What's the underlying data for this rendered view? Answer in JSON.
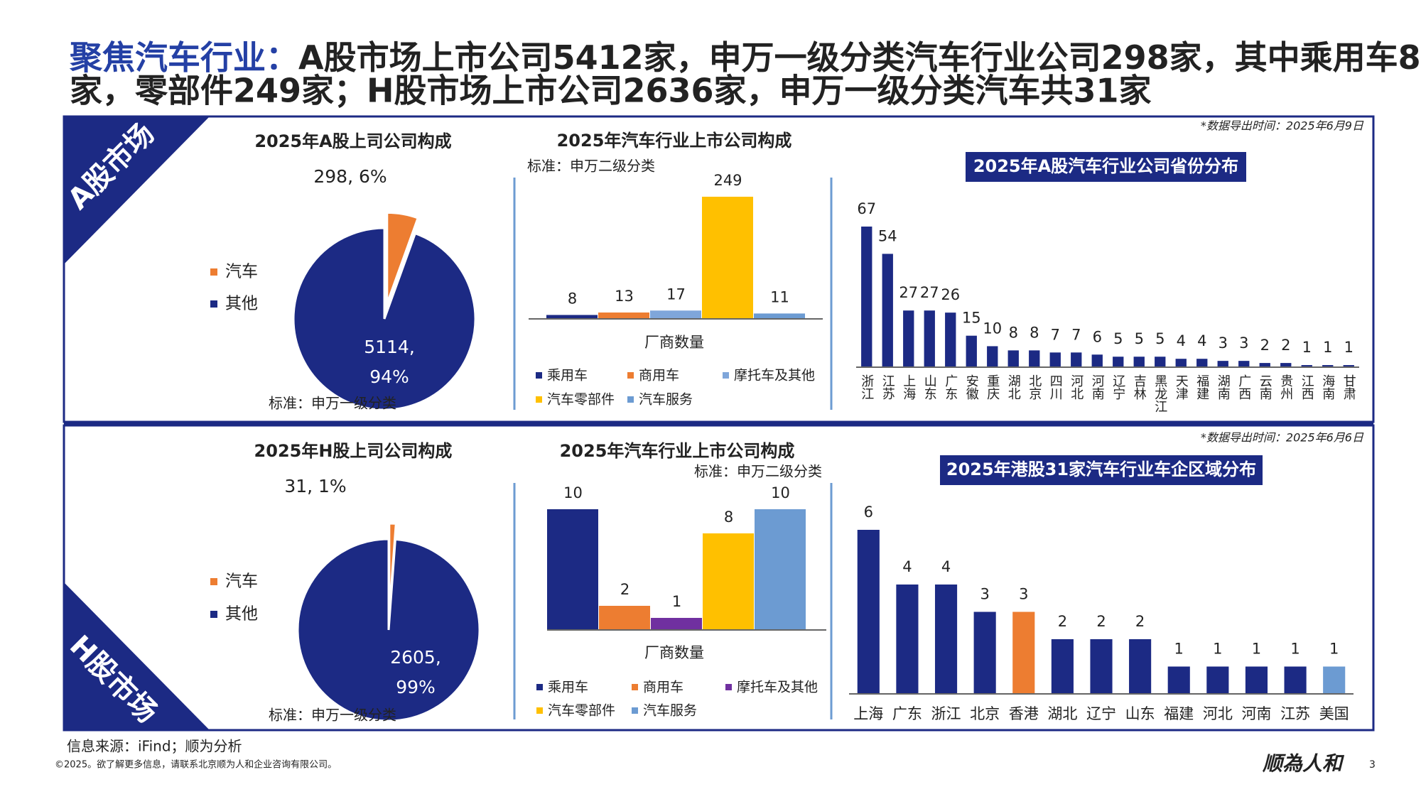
{
  "header": {
    "title_prefix": "聚焦汽车行业：",
    "title_line1": "A股市场上市公司5412家，申万一级分类汽车行业公司298家，其中乘用车8",
    "title_line2": "家，零部件249家；H股市场上市公司2636家，申万一级分类汽车共31家"
  },
  "sections": [
    {
      "label": "A股市场"
    },
    {
      "label": "H股市场"
    }
  ],
  "chart_data": [
    {
      "type": "pie",
      "title": "2025年A股上司公司构成",
      "categories": [
        "汽车",
        "其他"
      ],
      "values": [
        298,
        5114
      ],
      "value_labels": [
        "298, 6%",
        "5114, 94%"
      ],
      "colors": [
        "#ED7D31",
        "#1C2A84"
      ],
      "note": "标准：申万一级分类"
    },
    {
      "type": "cluster",
      "title": "2025年汽车行业上市公司构成",
      "note": "标准：申万二级分类",
      "categories": [
        "厂商数量"
      ],
      "series": [
        {
          "name": "乘用车",
          "color": "#1C2A84",
          "values": [
            8
          ]
        },
        {
          "name": "商用车",
          "color": "#ED7D31",
          "values": [
            13
          ]
        },
        {
          "name": "摩托车及其他",
          "color": "#7FA6DA",
          "values": [
            17
          ]
        },
        {
          "name": "汽车零部件",
          "color": "#FFC000",
          "values": [
            249
          ]
        },
        {
          "name": "汽车服务",
          "color": "#6C9BD2",
          "values": [
            11
          ]
        }
      ]
    },
    {
      "type": "bar",
      "title": "2025年A股汽车行业公司省份分布",
      "note": "*数据导出时间：2025年6月9日",
      "label_orientation": "vertical",
      "categories": [
        "浙江",
        "江苏",
        "上海",
        "山东",
        "广东",
        "安徽",
        "重庆",
        "湖北",
        "北京",
        "四川",
        "河北",
        "河南",
        "辽宁",
        "吉林",
        "黑龙江",
        "天津",
        "福建",
        "湖南",
        "广西",
        "云南",
        "贵州",
        "江西",
        "海南",
        "甘肃"
      ],
      "values": [
        67,
        54,
        27,
        27,
        26,
        15,
        10,
        8,
        8,
        7,
        7,
        6,
        5,
        5,
        5,
        4,
        4,
        3,
        3,
        2,
        2,
        1,
        1,
        1
      ],
      "color": "#1C2A84"
    },
    {
      "type": "pie",
      "title": "2025年H股上司公司构成",
      "categories": [
        "汽车",
        "其他"
      ],
      "values": [
        31,
        2605
      ],
      "value_labels": [
        "31, 1%",
        "2605, 99%"
      ],
      "colors": [
        "#ED7D31",
        "#1C2A84"
      ],
      "note": "标准：申万一级分类"
    },
    {
      "type": "cluster",
      "title": "2025年汽车行业上市公司构成",
      "note": "标准：申万二级分类",
      "categories": [
        "厂商数量"
      ],
      "series": [
        {
          "name": "乘用车",
          "color": "#1C2A84",
          "values": [
            10
          ]
        },
        {
          "name": "商用车",
          "color": "#ED7D31",
          "values": [
            2
          ]
        },
        {
          "name": "摩托车及其他",
          "color": "#7030A0",
          "values": [
            1
          ]
        },
        {
          "name": "汽车零部件",
          "color": "#FFC000",
          "values": [
            8
          ]
        },
        {
          "name": "汽车服务",
          "color": "#6C9BD2",
          "values": [
            10
          ]
        }
      ]
    },
    {
      "type": "bar",
      "title": "2025年港股31家汽车行业车企区域分布",
      "note": "*数据导出时间：2025年6月6日",
      "label_orientation": "horizontal",
      "categories": [
        "上海",
        "广东",
        "浙江",
        "北京",
        "香港",
        "湖北",
        "辽宁",
        "山东",
        "福建",
        "河北",
        "河南",
        "江苏",
        "美国"
      ],
      "values": [
        6,
        4,
        4,
        3,
        3,
        2,
        2,
        2,
        1,
        1,
        1,
        1,
        1
      ],
      "colors": [
        "#1C2A84",
        "#1C2A84",
        "#1C2A84",
        "#1C2A84",
        "#ED7D31",
        "#1C2A84",
        "#1C2A84",
        "#1C2A84",
        "#1C2A84",
        "#1C2A84",
        "#1C2A84",
        "#1C2A84",
        "#6C9BD2"
      ]
    }
  ],
  "footer": {
    "source": "信息来源：iFind；顺为分析",
    "copyright": "©2025。欲了解更多信息，请联系北京顺为人和企业咨询有限公司。",
    "logo": "顺為人和",
    "page": 3
  }
}
